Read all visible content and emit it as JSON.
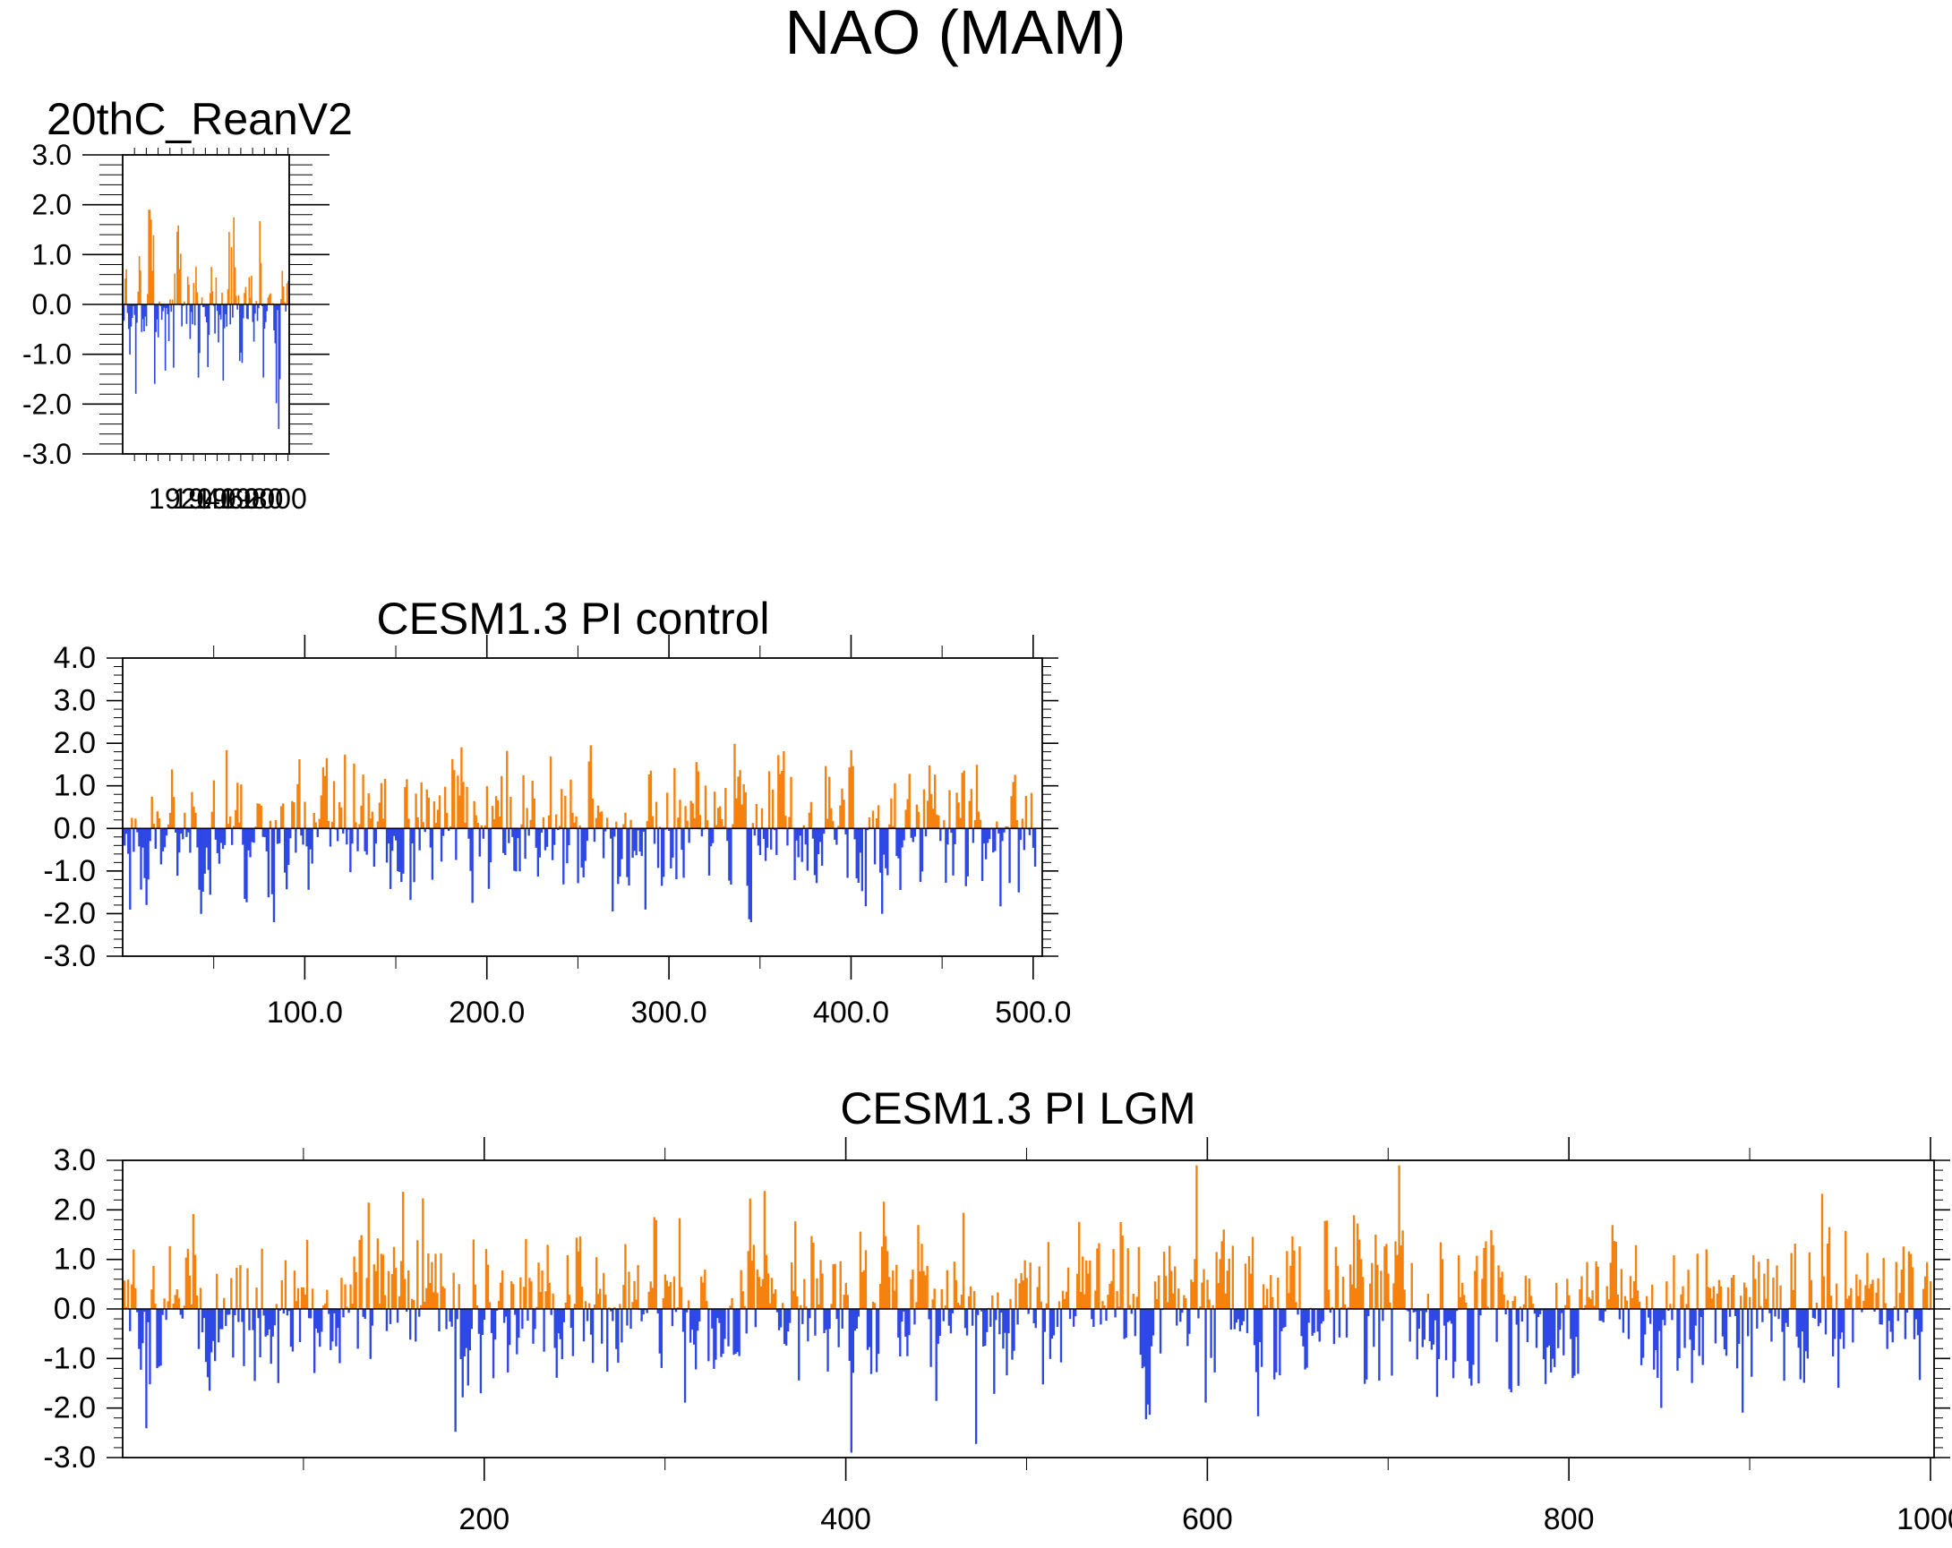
{
  "figure": {
    "title": "NAO (MAM)"
  },
  "colors": {
    "positive": "#f5820f",
    "negative": "#2e48e6",
    "frame": "#000000"
  },
  "chart_data": [
    {
      "type": "bar",
      "title": "20thC_ReanV2",
      "xlim": [
        1871,
        2012
      ],
      "ylim": [
        -3,
        3
      ],
      "yticks": [
        "-3.0",
        "-2.0",
        "-1.0",
        "0.0",
        "1.0",
        "2.0",
        "3.0"
      ],
      "ytick_values": [
        -3,
        -2,
        -1,
        0,
        1,
        2,
        3
      ],
      "xticks": [
        "1920",
        "1940",
        "1960",
        "1980",
        "2000"
      ],
      "xtick_values": [
        1920,
        1940,
        1960,
        1980,
        2000
      ],
      "n": 141,
      "x_start": 1871,
      "seed": 7,
      "amp": 0.72,
      "min": -2.5,
      "max": 1.9,
      "grid": false,
      "legend": "none"
    },
    {
      "type": "bar",
      "title": "CESM1.3 PI control",
      "xlim": [
        0,
        505
      ],
      "ylim": [
        -3,
        4
      ],
      "yticks": [
        "-3.0",
        "-2.0",
        "-1.0",
        "0.0",
        "1.0",
        "2.0",
        "3.0",
        "4.0"
      ],
      "ytick_values": [
        -3,
        -2,
        -1,
        0,
        1,
        2,
        3,
        4
      ],
      "xticks": [
        "100.0",
        "200.0",
        "300.0",
        "400.0",
        "500.0"
      ],
      "xtick_values": [
        100,
        200,
        300,
        400,
        500
      ],
      "n": 501,
      "x_start": 1,
      "seed": 23,
      "amp": 0.78,
      "min": -2.2,
      "max": 3.2,
      "grid": false,
      "legend": "none"
    },
    {
      "type": "bar",
      "title": "CESM1.3 PI LGM",
      "xlim": [
        0,
        1002
      ],
      "ylim": [
        -3,
        3
      ],
      "yticks": [
        "-3.0",
        "-2.0",
        "-1.0",
        "0.0",
        "1.0",
        "2.0",
        "3.0"
      ],
      "ytick_values": [
        -3,
        -2,
        -1,
        0,
        1,
        2,
        3
      ],
      "xticks": [
        "200",
        "400",
        "600",
        "800",
        "1000"
      ],
      "xtick_values": [
        200,
        400,
        600,
        800,
        1000
      ],
      "n": 1000,
      "x_start": 1,
      "seed": 51,
      "amp": 0.74,
      "min": -2.9,
      "max": 2.9,
      "grid": false,
      "legend": "none"
    }
  ]
}
